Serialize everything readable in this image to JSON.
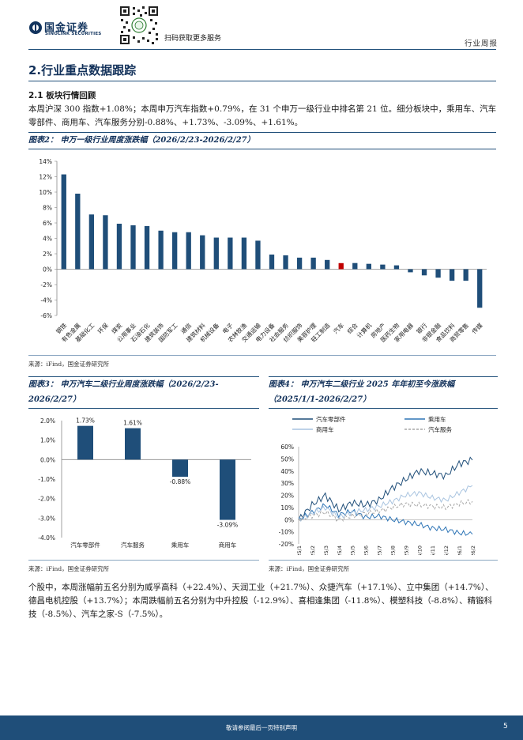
{
  "header": {
    "logo_cn": "国金证券",
    "logo_en": "SINOLINK SECURITIES",
    "scan_text": "扫码获取更多服务",
    "report_type": "行业周报"
  },
  "section": {
    "title": "2.行业重点数据跟踪",
    "subtitle": "2.1 板块行情回顾",
    "para1": "本周沪深 300 指数+1.08%；本周申万汽车指数+0.79%，在 31 个申万一级行业中排名第 21 位。细分板块中，乘用车、汽车零部件、商用车、汽车服务分别-0.88%、+1.73%、-3.09%、+1.61%。",
    "para2": "个股中，本周涨幅前五名分别为威孚高科（+22.4%）、天润工业（+21.7%）、众捷汽车（+17.1%）、立中集团（+14.7%）、德昌电机控股（+13.7%）；本周跌幅前五名分别为中升控股（-12.9%）、喜相逢集团（-11.8%）、模塑科技（-8.8%）、精锻科技（-8.5%）、汽车之家-S（-7.5%）。"
  },
  "figures": {
    "fig2_title": "图表2：  申万一级行业周度涨跌幅（2026/2/23-2026/2/27）",
    "fig3_title": "图表3：  申万汽车二级行业周度涨跌幅（2026/2/23-2026/2/27）",
    "fig4_title": "图表4：  申万汽车二级行业 2025 年年初至今涨跌幅（2025/1/1-2026/2/27）",
    "source": "来源：iFind，国金证券研究所"
  },
  "footer": {
    "disclaimer": "敬请参阅最后一页特别声明",
    "page": "5"
  },
  "chart_data": [
    {
      "type": "bar",
      "title": "申万一级行业周度涨跌幅（2026/2/23-2026/2/27）",
      "categories": [
        "钢铁",
        "有色金属",
        "基础化工",
        "环保",
        "煤炭",
        "公用事业",
        "石油石化",
        "建筑装饰",
        "国防军工",
        "通信",
        "建筑材料",
        "机械设备",
        "电子",
        "农林牧渔",
        "交通运输",
        "电力设备",
        "社会服务",
        "纺织服饰",
        "美容护理",
        "轻工制造",
        "汽车",
        "综合",
        "计算机",
        "房地产",
        "医药生物",
        "家用电器",
        "银行",
        "非银金融",
        "食品饮料",
        "商贸零售",
        "传媒"
      ],
      "values": [
        12.3,
        9.8,
        7.1,
        7.0,
        5.9,
        5.7,
        5.6,
        5.0,
        4.8,
        4.8,
        4.4,
        4.1,
        4.1,
        4.1,
        3.7,
        1.9,
        1.8,
        1.5,
        1.5,
        1.2,
        0.79,
        0.8,
        0.7,
        0.6,
        0.5,
        -0.4,
        -0.8,
        -1.1,
        -1.5,
        -1.5,
        -5.0
      ],
      "highlight": "汽车",
      "highlight_color": "#c00000",
      "bar_color": "#1f4e79",
      "yticks": [
        "14%",
        "12%",
        "10%",
        "8%",
        "6%",
        "4%",
        "2%",
        "0%",
        "-2%",
        "-4%",
        "-6%"
      ],
      "ylim": [
        -6,
        14
      ]
    },
    {
      "type": "bar",
      "title": "申万汽车二级行业周度涨跌幅（2026/2/23-2026/2/27）",
      "categories": [
        "汽车零部件",
        "汽车服务",
        "乘用车",
        "商用车"
      ],
      "values": [
        1.73,
        1.61,
        -0.88,
        -3.09
      ],
      "labels": [
        "1.73%",
        "1.61%",
        "-0.88%",
        "-3.09%"
      ],
      "yticks": [
        "2.0%",
        "1.0%",
        "0.0%",
        "-1.0%",
        "-2.0%",
        "-3.0%",
        "-4.0%"
      ],
      "ylim": [
        -4,
        2
      ],
      "bar_color": "#1f4e79"
    },
    {
      "type": "line",
      "title": "申万汽车二级行业 2025 年年初至今涨跌幅（2025/1/1-2026/2/27）",
      "x": [
        "2025/1",
        "2025/2",
        "2025/3",
        "2025/4",
        "2025/5",
        "2025/6",
        "2025/7",
        "2025/8",
        "2025/9",
        "2025/10",
        "2025/11",
        "2025/12",
        "2026/1",
        "2026/2"
      ],
      "xticks": [
        "2025/1",
        "2025/2",
        "2025/3",
        "2025/4",
        "2025/5",
        "2025/6",
        "2025/7",
        "2025/8",
        "2025/9",
        "2025/10",
        "2025/11",
        "2025/12",
        "2026/1",
        "2026/2"
      ],
      "yticks": [
        "60%",
        "50%",
        "40%",
        "30%",
        "20%",
        "10%",
        "0%",
        "-10%",
        "-20%"
      ],
      "ylim": [
        -20,
        60
      ],
      "series": [
        {
          "name": "汽车零部件",
          "color": "#1f4e79",
          "values": [
            0,
            12,
            20,
            8,
            14,
            12,
            16,
            26,
            33,
            40,
            38,
            36,
            46,
            49
          ]
        },
        {
          "name": "乘用车",
          "color": "#2e75b6",
          "values": [
            0,
            6,
            12,
            4,
            7,
            2,
            3,
            0,
            -2,
            -4,
            -7,
            -8,
            -11,
            -12
          ]
        },
        {
          "name": "商用车",
          "color": "#a9c4e0",
          "values": [
            0,
            5,
            10,
            2,
            6,
            8,
            11,
            15,
            20,
            22,
            18,
            16,
            22,
            28
          ]
        },
        {
          "name": "汽车服务",
          "color": "#a6a6a6",
          "values": [
            0,
            3,
            6,
            0,
            3,
            5,
            7,
            10,
            13,
            12,
            11,
            10,
            13,
            15
          ]
        }
      ]
    }
  ]
}
